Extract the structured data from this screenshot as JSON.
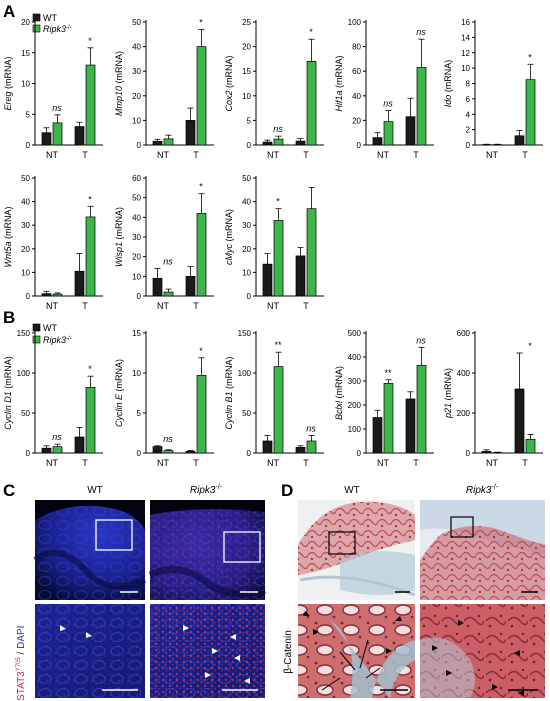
{
  "panels": {
    "A": "A",
    "B": "B",
    "C": "C",
    "D": "D"
  },
  "legend": {
    "wt": "WT",
    "ko": "Ripk3",
    "ko_sup": "-/-",
    "wt_color": "#1a1a1a",
    "ko_color": "#3cb54a"
  },
  "categories": [
    "NT",
    "T"
  ],
  "chart_data": [
    {
      "type": "bar",
      "gene": "Ereg",
      "ylabel_suffix": " (mRNA)",
      "ylim": [
        0,
        20
      ],
      "ticks": [
        0,
        5,
        10,
        15,
        20
      ],
      "series": [
        {
          "name": "WT",
          "values": [
            2.0,
            3.0
          ],
          "errors": [
            0.8,
            0.7
          ]
        },
        {
          "name": "Ripk3-/-",
          "values": [
            3.6,
            13.0
          ],
          "errors": [
            1.3,
            2.8
          ]
        }
      ],
      "significance": [
        "ns",
        "*"
      ]
    },
    {
      "type": "bar",
      "gene": "Mmp10",
      "ylabel_suffix": " (mRNA)",
      "ylim": [
        0,
        50
      ],
      "ticks": [
        0,
        10,
        20,
        30,
        40,
        50
      ],
      "series": [
        {
          "name": "WT",
          "values": [
            1.5,
            10.0
          ],
          "errors": [
            0.8,
            5.0
          ]
        },
        {
          "name": "Ripk3-/-",
          "values": [
            2.5,
            40.0
          ],
          "errors": [
            1.5,
            7.0
          ]
        }
      ],
      "significance": [
        "",
        "*"
      ]
    },
    {
      "type": "bar",
      "gene": "Cox2",
      "ylabel_suffix": " (mRNA)",
      "ylim": [
        0,
        25
      ],
      "ticks": [
        0,
        5,
        10,
        15,
        20,
        25
      ],
      "series": [
        {
          "name": "WT",
          "values": [
            0.6,
            0.8
          ],
          "errors": [
            0.4,
            0.5
          ]
        },
        {
          "name": "Ripk3-/-",
          "values": [
            1.2,
            17.0
          ],
          "errors": [
            0.6,
            4.5
          ]
        }
      ],
      "significance": [
        "ns",
        "*"
      ]
    },
    {
      "type": "bar",
      "gene": "Hif1a",
      "ylabel_suffix": " (mRNA)",
      "ylim": [
        0,
        100
      ],
      "ticks": [
        0,
        20,
        40,
        60,
        80,
        100
      ],
      "series": [
        {
          "name": "WT",
          "values": [
            6.0,
            23.0
          ],
          "errors": [
            4.0,
            15.0
          ]
        },
        {
          "name": "Ripk3-/-",
          "values": [
            19.0,
            63.0
          ],
          "errors": [
            9.0,
            23.0
          ]
        }
      ],
      "significance": [
        "ns",
        "ns"
      ]
    },
    {
      "type": "bar",
      "gene": "Ido",
      "ylabel_suffix": " (mRNA)",
      "ylim": [
        0,
        16
      ],
      "ticks": [
        0,
        2,
        4,
        6,
        8,
        10,
        12,
        14,
        16
      ],
      "series": [
        {
          "name": "WT",
          "values": [
            0.05,
            1.2
          ],
          "errors": [
            0.05,
            0.7
          ]
        },
        {
          "name": "Ripk3-/-",
          "values": [
            0.05,
            8.5
          ],
          "errors": [
            0.05,
            2.0
          ]
        }
      ],
      "significance": [
        "",
        "*"
      ]
    },
    {
      "type": "bar",
      "gene": "Wnt5a",
      "ylabel_suffix": " (mRNA)",
      "ylim": [
        0,
        50
      ],
      "ticks": [
        0,
        10,
        20,
        30,
        40,
        50
      ],
      "series": [
        {
          "name": "WT",
          "values": [
            1.0,
            10.5
          ],
          "errors": [
            1.0,
            7.5
          ]
        },
        {
          "name": "Ripk3-/-",
          "values": [
            0.8,
            33.5
          ],
          "errors": [
            0.5,
            4.5
          ]
        }
      ],
      "significance": [
        "",
        "*"
      ]
    },
    {
      "type": "bar",
      "gene": "Wisp1",
      "ylabel_suffix": " (mRNA)",
      "ylim": [
        0,
        60
      ],
      "ticks": [
        0,
        10,
        20,
        30,
        40,
        50,
        60
      ],
      "series": [
        {
          "name": "WT",
          "values": [
            9.0,
            10.0
          ],
          "errors": [
            5.0,
            5.0
          ]
        },
        {
          "name": "Ripk3-/-",
          "values": [
            2.0,
            42.0
          ],
          "errors": [
            1.5,
            10.0
          ]
        }
      ],
      "significance": [
        "ns",
        "*"
      ]
    },
    {
      "type": "bar",
      "gene": "cMyc",
      "ylabel_suffix": " (mRNA)",
      "ylim": [
        0,
        50
      ],
      "ticks": [
        0,
        10,
        20,
        30,
        40,
        50
      ],
      "series": [
        {
          "name": "WT",
          "values": [
            13.5,
            17.0
          ],
          "errors": [
            4.5,
            3.5
          ]
        },
        {
          "name": "Ripk3-/-",
          "values": [
            32.0,
            37.0
          ],
          "errors": [
            5.0,
            9.0
          ]
        }
      ],
      "significance": [
        "*",
        ""
      ]
    },
    {
      "type": "bar",
      "gene": "Cyclin D1",
      "ylabel_suffix": " (mRNA)",
      "ylim": [
        0,
        150
      ],
      "ticks": [
        0,
        50,
        100,
        150
      ],
      "series": [
        {
          "name": "WT",
          "values": [
            6.0,
            20.0
          ],
          "errors": [
            3.0,
            12.0
          ]
        },
        {
          "name": "Ripk3-/-",
          "values": [
            8.0,
            82.0
          ],
          "errors": [
            3.0,
            14.0
          ]
        }
      ],
      "significance": [
        "ns",
        "*"
      ]
    },
    {
      "type": "bar",
      "gene": "Cyclin E",
      "ylabel_suffix": " (mRNA)",
      "ylim": [
        0,
        15
      ],
      "ticks": [
        0,
        5,
        10,
        15
      ],
      "series": [
        {
          "name": "WT",
          "values": [
            0.8,
            0.2
          ],
          "errors": [
            0.1,
            0.1
          ]
        },
        {
          "name": "Ripk3-/-",
          "values": [
            0.3,
            9.7
          ],
          "errors": [
            0.1,
            2.2
          ]
        }
      ],
      "significance": [
        "ns",
        "*"
      ]
    },
    {
      "type": "bar",
      "gene": "Cyclin B1",
      "ylabel_suffix": " (mRNA)",
      "ylim": [
        0,
        150
      ],
      "ticks": [
        0,
        50,
        100,
        150
      ],
      "series": [
        {
          "name": "WT",
          "values": [
            15.0,
            7.0
          ],
          "errors": [
            7.0,
            2.0
          ]
        },
        {
          "name": "Ripk3-/-",
          "values": [
            108.0,
            15.0
          ],
          "errors": [
            18.0,
            7.0
          ]
        }
      ],
      "significance": [
        "**",
        "ns"
      ]
    },
    {
      "type": "bar",
      "gene": "Bclxl",
      "ylabel_suffix": " (mRNA)",
      "ylim": [
        0,
        500
      ],
      "ticks": [
        0,
        100,
        200,
        300,
        400,
        500
      ],
      "series": [
        {
          "name": "WT",
          "values": [
            148.0,
            225.0
          ],
          "errors": [
            30.0,
            30.0
          ]
        },
        {
          "name": "Ripk3-/-",
          "values": [
            290.0,
            365.0
          ],
          "errors": [
            15.0,
            75.0
          ]
        }
      ],
      "significance": [
        "**",
        "ns"
      ]
    },
    {
      "type": "bar",
      "gene": "p21",
      "ylabel_suffix": " (mRNA)",
      "ylim": [
        0,
        600
      ],
      "ticks": [
        0,
        200,
        400,
        600
      ],
      "series": [
        {
          "name": "WT",
          "values": [
            8.0,
            320.0
          ],
          "errors": [
            8.0,
            180.0
          ]
        },
        {
          "name": "Ripk3-/-",
          "values": [
            2.0,
            68.0
          ],
          "errors": [
            2.0,
            25.0
          ]
        }
      ],
      "significance": [
        "",
        "*"
      ]
    }
  ],
  "panelC": {
    "col_wt": "WT",
    "col_ko": "Ripk3",
    "col_ko_sup": "-/-",
    "side_label_main": "pSTAT3",
    "side_label_sup": "Y705",
    "side_label_sep": " / ",
    "side_label_dapi": "DAPI",
    "marker_red": "#d8344a",
    "dapi_blue": "#2431b0"
  },
  "panelD": {
    "col_wt": "WT",
    "col_ko": "Ripk3",
    "col_ko_sup": "-/-",
    "side_label": "β-Catenin"
  }
}
